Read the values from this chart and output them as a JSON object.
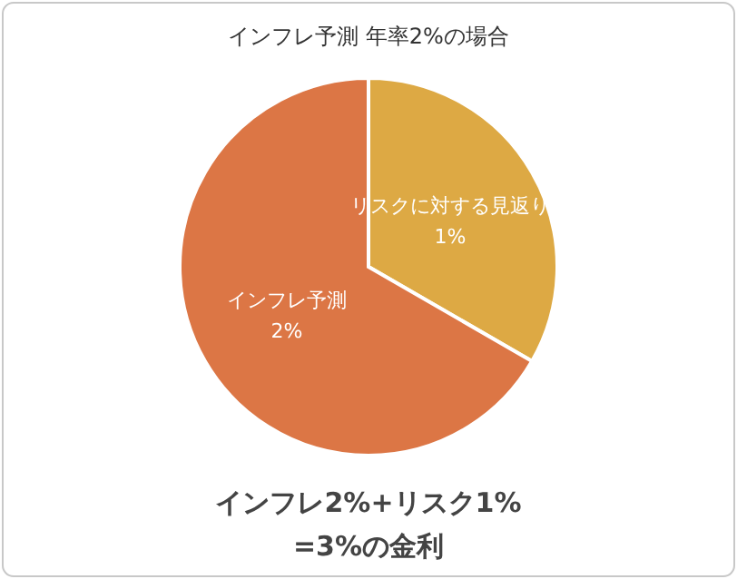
{
  "chart_data": {
    "type": "pie",
    "title": "インフレ予測 年率2%の場合",
    "categories": [
      "リスクに対する見返り",
      "インフレ予測"
    ],
    "values": [
      1,
      2
    ],
    "value_labels": [
      "1%",
      "2%"
    ],
    "colors": [
      "#dda944",
      "#dc7645"
    ],
    "annotations": [
      "インフレ2%+リスク1%",
      "=3%の金利"
    ]
  }
}
